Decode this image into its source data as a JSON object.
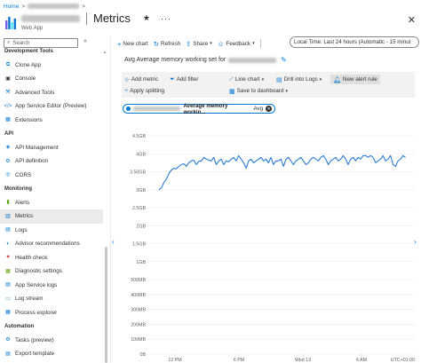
{
  "breadcrumb": {
    "home": "Home",
    "separator": ">"
  },
  "header": {
    "page_title": "Metrics",
    "resource_type": "Web App",
    "star": "★",
    "more": "···",
    "close": "✕"
  },
  "sidebar": {
    "search_placeholder": "Search",
    "collapse": "«",
    "rows": [
      {
        "type": "section",
        "label": "Development Tools",
        "icon": ""
      },
      {
        "type": "item",
        "label": "Clone App",
        "icon": "clone-icon",
        "glyph": "⧉",
        "color": "#0078d4"
      },
      {
        "type": "item",
        "label": "Console",
        "icon": "console-icon",
        "glyph": "▣",
        "color": "#323130"
      },
      {
        "type": "item",
        "label": "Advanced Tools",
        "icon": "advanced-tools-icon",
        "glyph": "⚒",
        "color": "#0078d4"
      },
      {
        "type": "item",
        "label": "App Service Editor (Preview)",
        "icon": "editor-icon",
        "glyph": "</>",
        "color": "#0078d4"
      },
      {
        "type": "item",
        "label": "Extensions",
        "icon": "extensions-icon",
        "glyph": "▦",
        "color": "#0078d4"
      },
      {
        "type": "section",
        "label": "API",
        "icon": ""
      },
      {
        "type": "item",
        "label": "API Management",
        "icon": "api-management-icon",
        "glyph": "◈",
        "color": "#0078d4"
      },
      {
        "type": "item",
        "label": "API definition",
        "icon": "api-definition-icon",
        "glyph": "⚙",
        "color": "#0078d4"
      },
      {
        "type": "item",
        "label": "CORS",
        "icon": "cors-icon",
        "glyph": "◎",
        "color": "#0078d4"
      },
      {
        "type": "section",
        "label": "Monitoring",
        "icon": ""
      },
      {
        "type": "item",
        "label": "Alerts",
        "icon": "alerts-icon",
        "glyph": "▮",
        "color": "#57a300"
      },
      {
        "type": "item",
        "label": "Metrics",
        "icon": "metrics-icon",
        "glyph": "▥",
        "color": "#0078d4",
        "active": true
      },
      {
        "type": "item",
        "label": "Logs",
        "icon": "logs-icon",
        "glyph": "▤",
        "color": "#0078d4"
      },
      {
        "type": "item",
        "label": "Advisor recommendations",
        "icon": "advisor-icon",
        "glyph": "◐",
        "color": "#0078d4"
      },
      {
        "type": "item",
        "label": "Health check",
        "icon": "health-check-icon",
        "glyph": "♥",
        "color": "#d13438"
      },
      {
        "type": "item",
        "label": "Diagnostic settings",
        "icon": "diagnostic-settings-icon",
        "glyph": "▦",
        "color": "#57a300"
      },
      {
        "type": "item",
        "label": "App Service logs",
        "icon": "app-service-logs-icon",
        "glyph": "▤",
        "color": "#0078d4"
      },
      {
        "type": "item",
        "label": "Log stream",
        "icon": "log-stream-icon",
        "glyph": "▭",
        "color": "#0078d4"
      },
      {
        "type": "item",
        "label": "Process explorer",
        "icon": "process-explorer-icon",
        "glyph": "▦",
        "color": "#0078d4"
      },
      {
        "type": "section",
        "label": "Automation",
        "icon": ""
      },
      {
        "type": "item",
        "label": "Tasks (preview)",
        "icon": "tasks-icon",
        "glyph": "⚙",
        "color": "#0078d4"
      },
      {
        "type": "item",
        "label": "Export template",
        "icon": "export-template-icon",
        "glyph": "▤",
        "color": "#0078d4"
      }
    ]
  },
  "toolbar": {
    "new_chart": "New chart",
    "refresh": "Refresh",
    "share": "Share",
    "feedback": "Feedback",
    "time_range": "Local Time: Last 24 hours (Automatic - 15 minut"
  },
  "chart_panel": {
    "title_prefix": "Avg Average memory working set for",
    "add_metric": "Add metric",
    "add_filter": "Add filter",
    "line_chart": "Line chart",
    "drill_into_logs": "Drill into Logs",
    "new_alert_rule": "New alert rule",
    "apply_splitting": "Apply splitting",
    "save_to_dashboard": "Save to dashboard",
    "pill_metric": "Average memory workin...",
    "pill_aggregation": "Avg"
  },
  "colors": {
    "accent": "#0078d4",
    "series": "#2b7cd3"
  },
  "chart_data": {
    "type": "line",
    "title": "",
    "xlabel": "",
    "ylabel": "",
    "y_tick_labels": [
      "0B",
      "100MB",
      "200MB",
      "300MB",
      "400MB",
      "500MB",
      "1GB",
      "1.5GB",
      "2GB",
      "2.5GB",
      "3GB",
      "3.50GB",
      "4GB",
      "4.5GB"
    ],
    "y_tick_values": [
      0,
      100,
      200,
      300,
      400,
      500,
      1000,
      1500,
      2000,
      2500,
      3000,
      3500,
      4000,
      4500
    ],
    "ylim": [
      0,
      4500
    ],
    "y_scale": "piecewise (0–500MB and 500MB–4.5GB segments spaced like the original)",
    "x_tick_labels": [
      "12 PM",
      "6 PM",
      "Wed 13",
      "6 AM",
      "UTC+01:00"
    ],
    "grid": true,
    "series": [
      {
        "values": [
          3000,
          3050,
          3200,
          3300,
          3450,
          3550,
          3600,
          3580,
          3650,
          3700,
          3720,
          3650,
          3750,
          3800,
          3820,
          3700,
          3790,
          3800,
          3900,
          3850,
          3820,
          3800,
          3900,
          3700,
          3800,
          3850,
          3700,
          3800,
          3780,
          3850,
          3900,
          3800,
          3950,
          3850,
          3750,
          3600,
          3800,
          3850,
          3750,
          3800,
          3850,
          3900,
          3800,
          3850,
          3750,
          3900,
          3700,
          3800,
          3800,
          3850,
          3650,
          3850,
          3900,
          3800,
          3700,
          3800,
          3850,
          3900,
          3800,
          3700,
          3750,
          3850,
          3900,
          3850,
          3800,
          3900,
          3950,
          3850,
          3700,
          3800,
          3850,
          3900,
          3800,
          3850,
          3950,
          3850,
          3700,
          3850,
          3900,
          3800,
          3900,
          3850,
          3950,
          3950,
          3900,
          3950,
          3900,
          3750,
          3800,
          3850,
          3950,
          3800,
          3850,
          3950,
          3700,
          3650,
          3800,
          3850,
          3950,
          3900
        ]
      }
    ]
  }
}
